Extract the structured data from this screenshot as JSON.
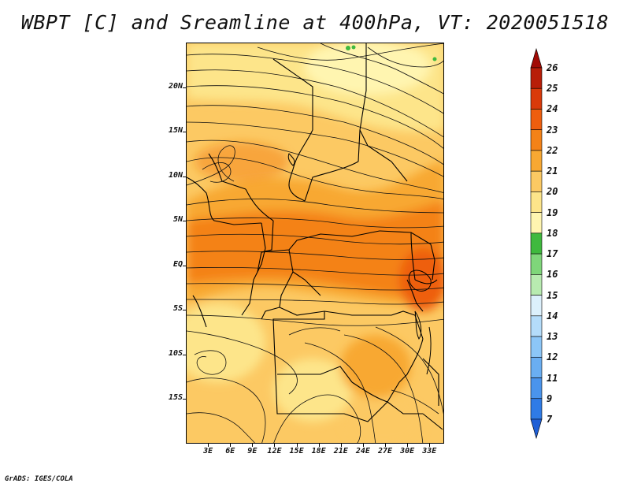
{
  "title": "WBPT [C] and Sreamline at 400hPa, VT: 2020051518",
  "credit": "GrADS: IGES/COLA",
  "map": {
    "lat_labels": [
      "20N",
      "15N",
      "10N",
      "5N",
      "EQ",
      "5S",
      "10S",
      "15S"
    ],
    "lat_values": [
      20,
      15,
      10,
      5,
      0,
      -5,
      -10,
      -15
    ],
    "lon_labels": [
      "3E",
      "6E",
      "9E",
      "12E",
      "15E",
      "18E",
      "21E",
      "24E",
      "27E",
      "30E",
      "33E"
    ],
    "lon_values": [
      3,
      6,
      9,
      12,
      15,
      18,
      21,
      24,
      27,
      30,
      33
    ],
    "lat_range": [
      -20,
      25
    ],
    "lon_range": [
      0,
      35
    ],
    "field": "wet-bulb potential temperature",
    "overlay": "streamlines"
  },
  "colorbar": {
    "levels": [
      "7",
      "9",
      "11",
      "12",
      "13",
      "14",
      "15",
      "16",
      "17",
      "18",
      "19",
      "20",
      "21",
      "22",
      "23",
      "24",
      "25",
      "26"
    ],
    "colors": [
      "#1f5fd6",
      "#2f7be6",
      "#4a94ec",
      "#6aaef2",
      "#8cc6f7",
      "#b4dcfa",
      "#dcf0fc",
      "#b8ebb0",
      "#7fd67a",
      "#3fb93e",
      "#fff5b0",
      "#fde58a",
      "#fcc963",
      "#f8a832",
      "#f48217",
      "#ee5e0e",
      "#d93a0a",
      "#b81e08",
      "#a10b05"
    ]
  }
}
